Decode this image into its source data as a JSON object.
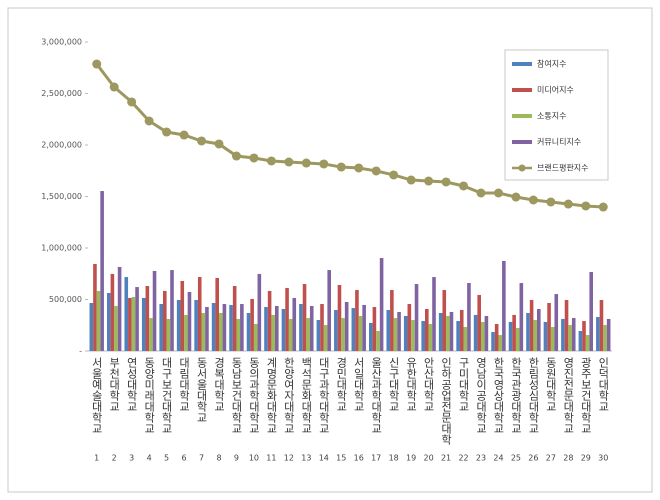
{
  "chart_data": {
    "type": "bar-line",
    "categories": [
      "서울예술대학교",
      "부천대학교",
      "연성대학교",
      "동양미래대학교",
      "대구보건대학교",
      "대림대학교",
      "동서울대학교",
      "경복대학교",
      "동남보건대학교",
      "동의과학대학교",
      "계명문화대학교",
      "한양여자대학교",
      "백석문화대학교",
      "대구과학대학교",
      "경민대학교",
      "서일대학교",
      "울산과학대학교",
      "신구대학교",
      "유한대학교",
      "안산대학교",
      "인하공업전문대학",
      "구미대학교",
      "영남이공대학교",
      "한국영상대학교",
      "한국관광대학교",
      "한림성심대학교",
      "동원대학교",
      "영진전문대학교",
      "광주보건대학교",
      "인덕대학교"
    ],
    "ranks": [
      1,
      2,
      3,
      4,
      5,
      6,
      7,
      8,
      9,
      10,
      11,
      12,
      13,
      14,
      15,
      16,
      17,
      18,
      19,
      20,
      21,
      22,
      23,
      24,
      25,
      26,
      27,
      28,
      29,
      30
    ],
    "series": [
      {
        "name": "참여지수",
        "type": "bar",
        "color": "#4f81bd",
        "values": [
          466000,
          563000,
          718000,
          515000,
          456000,
          495000,
          495000,
          466000,
          447000,
          369000,
          427000,
          408000,
          456000,
          301000,
          398000,
          417000,
          272000,
          398000,
          340000,
          291000,
          369000,
          291000,
          350000,
          184000,
          282000,
          369000,
          282000,
          311000,
          194000,
          330000
        ]
      },
      {
        "name": "미디어지수",
        "type": "bar",
        "color": "#c0504d",
        "values": [
          845000,
          748000,
          515000,
          631000,
          583000,
          680000,
          718000,
          709000,
          631000,
          505000,
          583000,
          612000,
          650000,
          456000,
          641000,
          592000,
          427000,
          592000,
          456000,
          408000,
          592000,
          398000,
          544000,
          262000,
          350000,
          495000,
          466000,
          495000,
          291000,
          495000
        ]
      },
      {
        "name": "소통지수",
        "type": "bar",
        "color": "#9bbb59",
        "values": [
          583000,
          437000,
          524000,
          320000,
          311000,
          350000,
          369000,
          369000,
          311000,
          262000,
          350000,
          311000,
          320000,
          252000,
          320000,
          340000,
          194000,
          320000,
          301000,
          262000,
          340000,
          233000,
          282000,
          155000,
          223000,
          301000,
          233000,
          252000,
          155000,
          252000
        ]
      },
      {
        "name": "커뮤니티지수",
        "type": "bar",
        "color": "#8064a2",
        "values": [
          1553000,
          816000,
          621000,
          777000,
          786000,
          573000,
          427000,
          456000,
          456000,
          748000,
          437000,
          515000,
          437000,
          786000,
          476000,
          447000,
          903000,
          379000,
          650000,
          718000,
          379000,
          660000,
          340000,
          874000,
          660000,
          408000,
          553000,
          320000,
          767000,
          311000
        ]
      },
      {
        "name": "브랜드평판지수",
        "type": "line",
        "color": "#9c9860",
        "values": [
          2786000,
          2563000,
          2418000,
          2233000,
          2126000,
          2097000,
          2039000,
          2010000,
          1893000,
          1874000,
          1845000,
          1835000,
          1825000,
          1816000,
          1786000,
          1777000,
          1748000,
          1709000,
          1660000,
          1650000,
          1641000,
          1602000,
          1534000,
          1534000,
          1495000,
          1466000,
          1447000,
          1427000,
          1408000,
          1398000
        ]
      }
    ],
    "ylim": [
      0,
      3000000
    ],
    "yticks": [
      {
        "value": 0,
        "label": "-"
      },
      {
        "value": 500000,
        "label": "500,000"
      },
      {
        "value": 1000000,
        "label": "1,000,000"
      },
      {
        "value": 1500000,
        "label": "1,500,000"
      },
      {
        "value": 2000000,
        "label": "2,000,000"
      },
      {
        "value": 2500000,
        "label": "2,500,000"
      },
      {
        "value": 3000000,
        "label": "3,000,000"
      }
    ],
    "grid": false,
    "legend": "upper right"
  }
}
